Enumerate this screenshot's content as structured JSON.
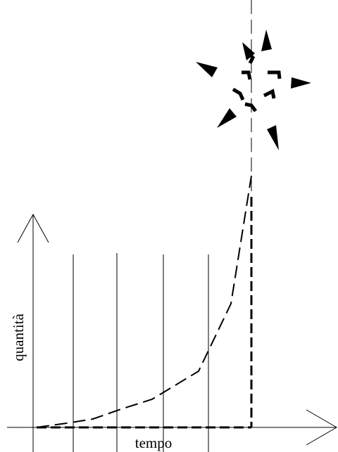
{
  "axes": {
    "y_label": "quantità",
    "x_label": "tempo"
  }
}
